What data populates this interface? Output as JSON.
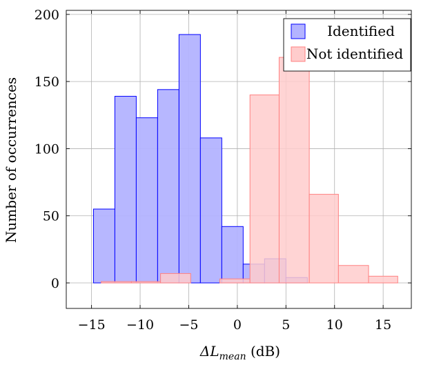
{
  "chart_data": {
    "type": "bar",
    "xlabel_prefix": "ΔL",
    "xlabel_subscript": "mean",
    "xlabel_suffix": " (dB)",
    "ylabel": "Number of occurrences",
    "xlim": [
      -17.6,
      17.9
    ],
    "ylim": [
      -19,
      203
    ],
    "xticks": [
      -15,
      -10,
      -5,
      0,
      5,
      10,
      15
    ],
    "xtick_labels": [
      "−15",
      "−10",
      "−5",
      "0",
      "5",
      "10",
      "15"
    ],
    "yticks": [
      0,
      50,
      100,
      150,
      200
    ],
    "ytick_labels": [
      "0",
      "50",
      "100",
      "150",
      "200"
    ],
    "grid": true,
    "legend_position": "top-right",
    "series": [
      {
        "name": "Identified",
        "color": "#0000ff",
        "fill": "#b3b3ff",
        "bins": [
          {
            "x0": -14.8,
            "x1": -12.6,
            "value": 55
          },
          {
            "x0": -12.6,
            "x1": -10.4,
            "value": 139
          },
          {
            "x0": -10.4,
            "x1": -8.2,
            "value": 123
          },
          {
            "x0": -8.2,
            "x1": -6.0,
            "value": 144
          },
          {
            "x0": -6.0,
            "x1": -3.8,
            "value": 185
          },
          {
            "x0": -3.8,
            "x1": -1.6,
            "value": 108
          },
          {
            "x0": -1.6,
            "x1": 0.6,
            "value": 42
          },
          {
            "x0": 0.6,
            "x1": 2.8,
            "value": 14
          },
          {
            "x0": 2.8,
            "x1": 5.0,
            "value": 18
          },
          {
            "x0": 5.0,
            "x1": 7.2,
            "value": 4
          }
        ]
      },
      {
        "name": "Not identified",
        "color": "#ff8080",
        "fill": "#ffcccc",
        "bins": [
          {
            "x0": -14.0,
            "x1": -10.9,
            "value": 1
          },
          {
            "x0": -10.9,
            "x1": -7.9,
            "value": 1
          },
          {
            "x0": -7.9,
            "x1": -4.8,
            "value": 7
          },
          {
            "x0": -4.8,
            "x1": -1.8,
            "value": 0
          },
          {
            "x0": -1.8,
            "x1": 1.3,
            "value": 3
          },
          {
            "x0": 1.3,
            "x1": 4.3,
            "value": 140
          },
          {
            "x0": 4.3,
            "x1": 7.4,
            "value": 168
          },
          {
            "x0": 7.4,
            "x1": 10.4,
            "value": 66
          },
          {
            "x0": 10.4,
            "x1": 13.5,
            "value": 13
          },
          {
            "x0": 13.5,
            "x1": 16.5,
            "value": 5
          }
        ]
      }
    ]
  }
}
